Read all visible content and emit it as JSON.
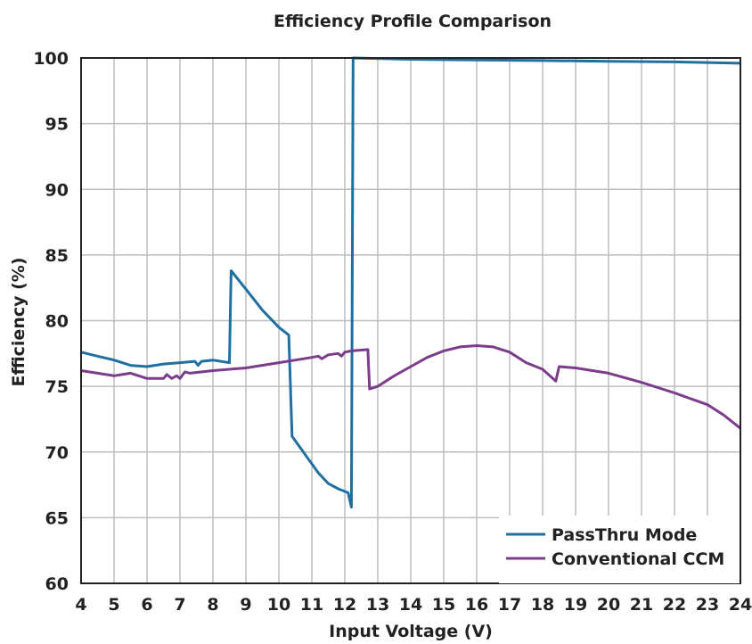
{
  "chart_data": {
    "type": "line",
    "title": "Efficiency Profile Comparison",
    "xlabel": "Input Voltage (V)",
    "ylabel": "Efficiency (%)",
    "xlim": [
      4,
      24
    ],
    "ylim": [
      60,
      100
    ],
    "xticks": [
      4,
      5,
      6,
      7,
      8,
      9,
      10,
      11,
      12,
      13,
      14,
      15,
      16,
      17,
      18,
      19,
      20,
      21,
      22,
      23,
      24
    ],
    "yticks": [
      60,
      65,
      70,
      75,
      80,
      85,
      90,
      95,
      100
    ],
    "grid": true,
    "legend_position": "bottom-right",
    "series": [
      {
        "name": "PassThru Mode",
        "color": "#1f6fa0",
        "points": [
          [
            4.0,
            77.6
          ],
          [
            4.5,
            77.3
          ],
          [
            5.0,
            77.0
          ],
          [
            5.5,
            76.6
          ],
          [
            6.0,
            76.5
          ],
          [
            6.5,
            76.7
          ],
          [
            7.0,
            76.8
          ],
          [
            7.45,
            76.9
          ],
          [
            7.55,
            76.6
          ],
          [
            7.65,
            76.9
          ],
          [
            8.0,
            77.0
          ],
          [
            8.5,
            76.8
          ],
          [
            8.55,
            83.8
          ],
          [
            9.0,
            82.4
          ],
          [
            9.5,
            80.8
          ],
          [
            10.0,
            79.5
          ],
          [
            10.3,
            78.9
          ],
          [
            10.4,
            71.2
          ],
          [
            10.8,
            69.8
          ],
          [
            11.2,
            68.4
          ],
          [
            11.5,
            67.6
          ],
          [
            11.8,
            67.2
          ],
          [
            12.1,
            66.9
          ],
          [
            12.2,
            65.8
          ],
          [
            12.25,
            100.0
          ],
          [
            14.0,
            99.9
          ],
          [
            16.0,
            99.85
          ],
          [
            18.0,
            99.8
          ],
          [
            20.0,
            99.75
          ],
          [
            22.0,
            99.7
          ],
          [
            24.0,
            99.6
          ]
        ]
      },
      {
        "name": "Conventional CCM",
        "color": "#7b3c8c",
        "points": [
          [
            4.0,
            76.2
          ],
          [
            4.5,
            76.0
          ],
          [
            5.0,
            75.8
          ],
          [
            5.5,
            76.0
          ],
          [
            6.0,
            75.6
          ],
          [
            6.3,
            75.6
          ],
          [
            6.5,
            75.6
          ],
          [
            6.6,
            75.9
          ],
          [
            6.75,
            75.6
          ],
          [
            6.9,
            75.8
          ],
          [
            7.0,
            75.6
          ],
          [
            7.15,
            76.1
          ],
          [
            7.3,
            76.0
          ],
          [
            8.0,
            76.2
          ],
          [
            9.0,
            76.4
          ],
          [
            10.0,
            76.8
          ],
          [
            10.5,
            77.0
          ],
          [
            11.0,
            77.2
          ],
          [
            11.2,
            77.3
          ],
          [
            11.3,
            77.1
          ],
          [
            11.5,
            77.4
          ],
          [
            11.8,
            77.5
          ],
          [
            11.9,
            77.3
          ],
          [
            12.0,
            77.6
          ],
          [
            12.2,
            77.7
          ],
          [
            12.7,
            77.8
          ],
          [
            12.75,
            74.8
          ],
          [
            13.0,
            75.0
          ],
          [
            13.5,
            75.8
          ],
          [
            14.0,
            76.5
          ],
          [
            14.5,
            77.2
          ],
          [
            15.0,
            77.7
          ],
          [
            15.5,
            78.0
          ],
          [
            16.0,
            78.1
          ],
          [
            16.5,
            78.0
          ],
          [
            17.0,
            77.6
          ],
          [
            17.5,
            76.8
          ],
          [
            18.0,
            76.3
          ],
          [
            18.4,
            75.4
          ],
          [
            18.5,
            76.5
          ],
          [
            19.0,
            76.4
          ],
          [
            20.0,
            76.0
          ],
          [
            21.0,
            75.3
          ],
          [
            22.0,
            74.5
          ],
          [
            23.0,
            73.6
          ],
          [
            23.5,
            72.8
          ],
          [
            24.0,
            71.8
          ]
        ]
      }
    ]
  }
}
